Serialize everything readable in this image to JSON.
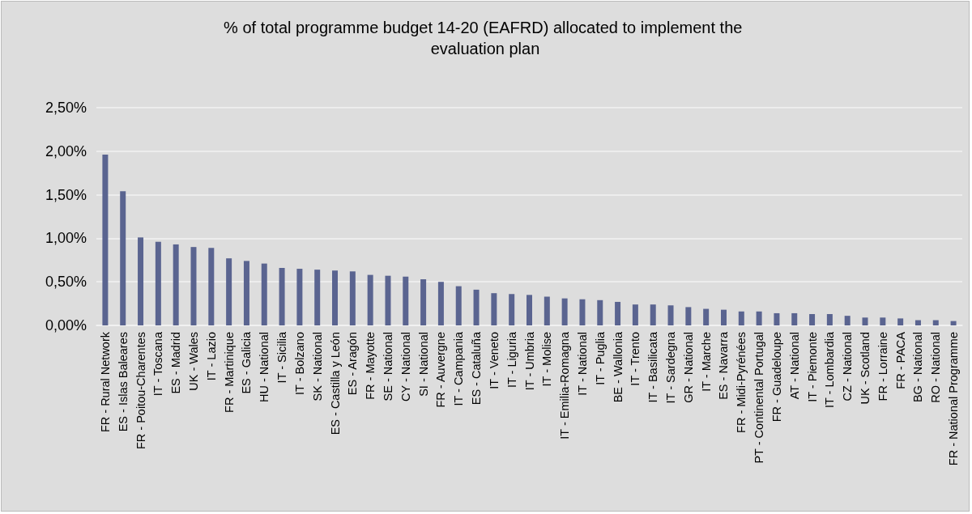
{
  "chart_data": {
    "type": "bar",
    "title": "% of total programme budget 14-20 (EAFRD) allocated to implement the evaluation plan",
    "categories": [
      "FR - Rural Network",
      "ES - Islas Baleares",
      "FR - Poitou-Charentes",
      "IT - Toscana",
      "ES - Madrid",
      "UK - Wales",
      "IT - Lazio",
      "FR - Martinique",
      "ES - Galicia",
      "HU - National",
      "IT - Sicilia",
      "IT - Bolzano",
      "SK - National",
      "ES - Castilla y León",
      "ES - Aragón",
      "FR - Mayotte",
      "SE - National",
      "CY - National",
      "SI - National",
      "FR - Auvergne",
      "IT - Campania",
      "ES - Cataluña",
      "IT - Veneto",
      "IT - Liguria",
      "IT - Umbria",
      "IT - Molise",
      "IT - Emilia-Romagna",
      "IT - National",
      "IT - Puglia",
      "BE - Wallonia",
      "IT - Trento",
      "IT - Basilicata",
      "IT - Sardegna",
      "GR - National",
      "IT - Marche",
      "ES - Navarra",
      "FR - Midi-Pyrénées",
      "PT - Continental Portugal",
      "FR - Guadeloupe",
      "AT - National",
      "IT - Piemonte",
      "IT - Lombardia",
      "CZ - National",
      "UK - Scotland",
      "FR - Lorraine",
      "FR - PACA",
      "BG - National",
      "RO - National",
      "FR - National Programme"
    ],
    "values": [
      1.96,
      1.54,
      1.01,
      0.96,
      0.93,
      0.9,
      0.89,
      0.77,
      0.74,
      0.71,
      0.66,
      0.65,
      0.64,
      0.63,
      0.62,
      0.58,
      0.57,
      0.56,
      0.53,
      0.5,
      0.45,
      0.41,
      0.37,
      0.36,
      0.35,
      0.33,
      0.31,
      0.3,
      0.29,
      0.27,
      0.24,
      0.24,
      0.23,
      0.21,
      0.19,
      0.18,
      0.16,
      0.16,
      0.14,
      0.14,
      0.13,
      0.13,
      0.11,
      0.09,
      0.09,
      0.08,
      0.06,
      0.06,
      0.05
    ],
    "color": "#5a6490",
    "ylim": [
      0,
      2.5
    ],
    "yticks": [
      {
        "value": 0,
        "label": "0,00%"
      },
      {
        "value": 0.5,
        "label": "0,50%"
      },
      {
        "value": 1,
        "label": "1,00%"
      },
      {
        "value": 1.5,
        "label": "1,50%"
      },
      {
        "value": 2,
        "label": "2,00%"
      },
      {
        "value": 2.5,
        "label": "2,50%"
      }
    ],
    "grid": "y"
  }
}
